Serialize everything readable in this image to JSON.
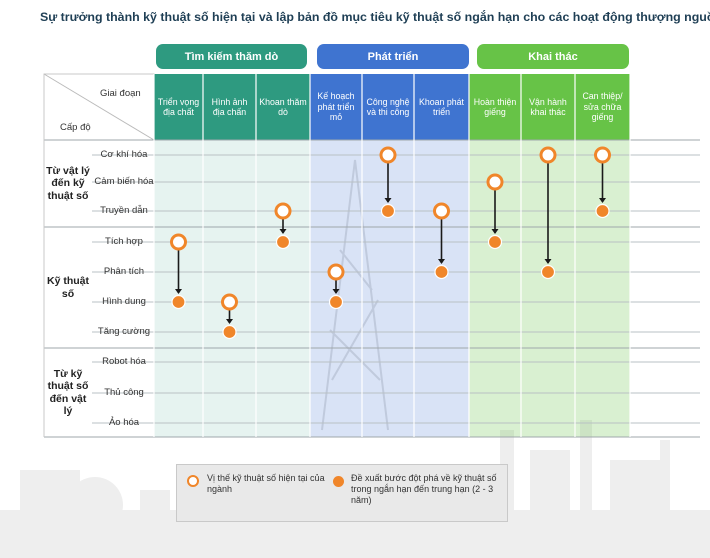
{
  "title": "Sự trưởng thành kỹ thuật số hiện tại và lập bản đồ mục tiêu kỹ thuật số ngắn hạn cho các hoạt động thượng nguồn",
  "header": {
    "phase_label": "Giai đoạn",
    "level_label": "Cấp độ"
  },
  "colors": {
    "explore": "#2e9a80",
    "develop": "#3f74d0",
    "produce": "#67c347",
    "marker": "#f0862a"
  },
  "phases": [
    {
      "label": "Tìm kiếm thăm dò",
      "stages": [
        "Triển vọng địa chất",
        "Hình ảnh địa chấn",
        "Khoan thăm dò"
      ]
    },
    {
      "label": "Phát triển",
      "stages": [
        "Kế hoạch phát triển mỏ",
        "Công nghệ và thi công",
        "Khoan phát triển"
      ]
    },
    {
      "label": "Khai thác",
      "stages": [
        "Hoàn thiện giếng",
        "Vận hành khai thác",
        "Can thiệp/ sửa chữa giếng"
      ]
    }
  ],
  "level_groups": [
    {
      "label": "Từ vật lý đến kỹ thuật số",
      "levels": [
        "Cơ khí hóa",
        "Cảm biến hóa",
        "Truyền dẫn"
      ]
    },
    {
      "label": "Kỹ thuật số",
      "levels": [
        "Tích hợp",
        "Phân tích",
        "Hình dung",
        "Tăng cường"
      ]
    },
    {
      "label": "Từ kỹ thuật số đến vật lý",
      "levels": [
        "Robot hóa",
        "Thủ công",
        "Ảo hóa"
      ]
    }
  ],
  "maturity": [
    {
      "stage": "Triển vọng địa chất",
      "current": "Tích hợp",
      "target": "Hình dung"
    },
    {
      "stage": "Hình ảnh địa chấn",
      "current": "Hình dung",
      "target": "Tăng cường"
    },
    {
      "stage": "Khoan thăm dò",
      "current": "Truyền dẫn",
      "target": "Tích hợp"
    },
    {
      "stage": "Kế hoạch phát triển mỏ",
      "current": "Phân tích",
      "target": "Hình dung"
    },
    {
      "stage": "Công nghệ và thi công",
      "current": "Cơ khí hóa",
      "target": "Truyền dẫn"
    },
    {
      "stage": "Khoan phát triển",
      "current": "Truyền dẫn",
      "target": "Phân tích"
    },
    {
      "stage": "Hoàn thiện giếng",
      "current": "Cảm biến hóa",
      "target": "Tích hợp"
    },
    {
      "stage": "Vận hành khai thác",
      "current": "Cơ khí hóa",
      "target": "Phân tích"
    },
    {
      "stage": "Can thiệp/ sửa chữa giếng",
      "current": "Cơ khí hóa",
      "target": "Truyền dẫn"
    }
  ],
  "legend": {
    "current": "Vị thế kỹ thuật số hiện tại của ngành",
    "target": "Đề xuất bước đột phá về kỹ thuật số trong ngắn hạn đến trung hạn (2 - 3 năm)"
  }
}
